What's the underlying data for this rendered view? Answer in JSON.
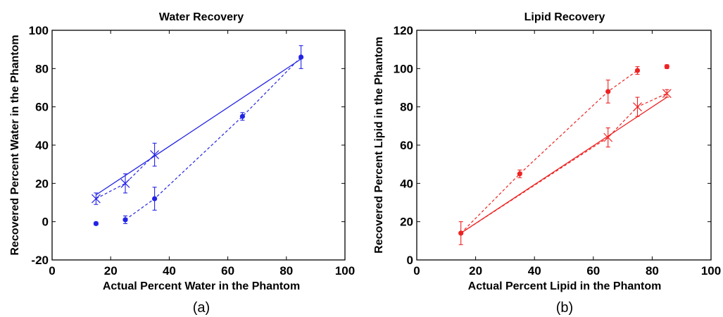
{
  "chart_data": [
    {
      "type": "scatter",
      "title": "Water Recovery",
      "xlabel": "Actual Percent Water in the Phantom",
      "ylabel": "Recovered Percent Water in the Phantom",
      "caption": "(a)",
      "xlim": [
        0,
        100
      ],
      "ylim": [
        -20,
        100
      ],
      "xticks": [
        0,
        20,
        40,
        60,
        80,
        100
      ],
      "yticks": [
        -20,
        0,
        20,
        40,
        60,
        80,
        100
      ],
      "color": "#2323e6",
      "series": [
        {
          "marker": "dot",
          "points": [
            {
              "x": 15,
              "y": -1,
              "err": 0.8
            },
            {
              "x": 25,
              "y": 1,
              "err": 2
            },
            {
              "x": 35,
              "y": 12,
              "err": 6
            },
            {
              "x": 65,
              "y": 55,
              "err": 2
            },
            {
              "x": 85,
              "y": 86,
              "err": 6
            }
          ]
        },
        {
          "marker": "x",
          "points": [
            {
              "x": 15,
              "y": 12,
              "err": 3
            },
            {
              "x": 25,
              "y": 20,
              "err": 5
            },
            {
              "x": 35,
              "y": 35,
              "err": 6
            }
          ]
        }
      ],
      "lines": [
        {
          "style": "solid",
          "x": [
            15,
            85
          ],
          "y": [
            14,
            85
          ]
        },
        {
          "style": "dashed",
          "x": [
            15,
            25,
            35
          ],
          "y": [
            12,
            20,
            35
          ]
        },
        {
          "style": "dashed",
          "x": [
            25,
            35,
            65,
            85
          ],
          "y": [
            1,
            12,
            55,
            86
          ]
        }
      ]
    },
    {
      "type": "scatter",
      "title": "Lipid Recovery",
      "xlabel": "Actual Percent Lipid in the Phantom",
      "ylabel": "Recovered Percent Lipid in the Phantom",
      "caption": "(b)",
      "xlim": [
        0,
        100
      ],
      "ylim": [
        0,
        120
      ],
      "xticks": [
        0,
        20,
        40,
        60,
        80,
        100
      ],
      "yticks": [
        0,
        20,
        40,
        60,
        80,
        100,
        120
      ],
      "color": "#ee2222",
      "series": [
        {
          "marker": "dot",
          "points": [
            {
              "x": 15,
              "y": 14,
              "err": 6
            },
            {
              "x": 35,
              "y": 45,
              "err": 2
            },
            {
              "x": 65,
              "y": 88,
              "err": 6
            },
            {
              "x": 75,
              "y": 99,
              "err": 2
            },
            {
              "x": 85,
              "y": 101,
              "err": 1
            }
          ]
        },
        {
          "marker": "x",
          "points": [
            {
              "x": 65,
              "y": 64,
              "err": 5
            },
            {
              "x": 75,
              "y": 80,
              "err": 5
            },
            {
              "x": 85,
              "y": 87,
              "err": 2
            }
          ]
        }
      ],
      "lines": [
        {
          "style": "solid",
          "x": [
            15,
            85
          ],
          "y": [
            14,
            85
          ]
        },
        {
          "style": "dashed",
          "x": [
            15,
            35,
            65,
            75
          ],
          "y": [
            14,
            45,
            88,
            99
          ]
        },
        {
          "style": "dashed",
          "x": [
            15,
            65,
            75,
            85
          ],
          "y": [
            14,
            64,
            80,
            87
          ]
        }
      ]
    }
  ]
}
